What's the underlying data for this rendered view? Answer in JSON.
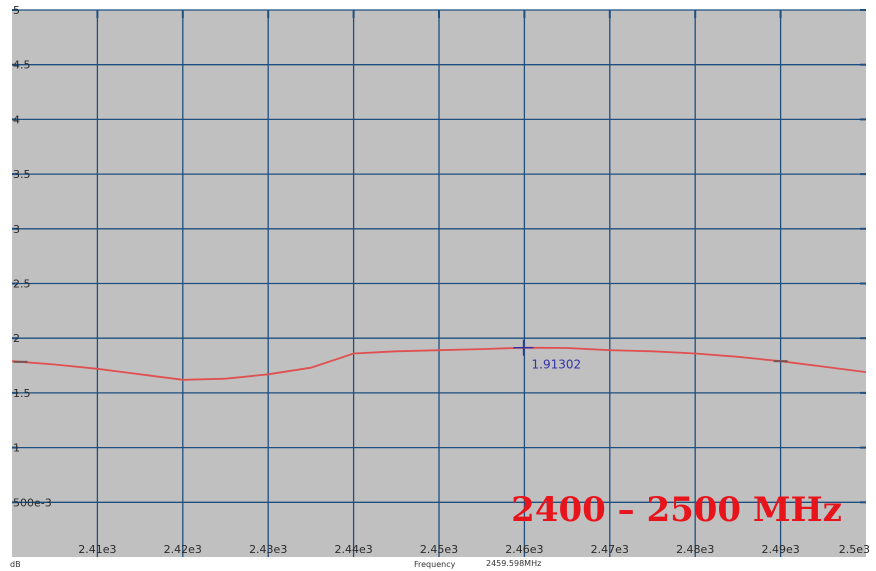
{
  "chart_data": {
    "type": "line",
    "x_unit_note": "frequency in MHz",
    "xlim": [
      2400,
      2500
    ],
    "ylim": [
      0,
      5
    ],
    "grid": true,
    "x_ticks": [
      {
        "value": 2410,
        "label": "2.41e3"
      },
      {
        "value": 2420,
        "label": "2.42e3"
      },
      {
        "value": 2430,
        "label": "2.43e3"
      },
      {
        "value": 2440,
        "label": "2.44e3"
      },
      {
        "value": 2450,
        "label": "2.45e3"
      },
      {
        "value": 2460,
        "label": "2.46e3"
      },
      {
        "value": 2470,
        "label": "2.47e3"
      },
      {
        "value": 2480,
        "label": "2.48e3"
      },
      {
        "value": 2490,
        "label": "2.49e3"
      },
      {
        "value": 2500,
        "label": "2.5e3"
      }
    ],
    "y_ticks": [
      {
        "value": 5,
        "label": "5"
      },
      {
        "value": 4.5,
        "label": "4.5"
      },
      {
        "value": 4,
        "label": "4"
      },
      {
        "value": 3.5,
        "label": "3.5"
      },
      {
        "value": 3,
        "label": "3"
      },
      {
        "value": 2.5,
        "label": "2.5"
      },
      {
        "value": 2,
        "label": "2"
      },
      {
        "value": 1.5,
        "label": "1.5"
      },
      {
        "value": 1,
        "label": "1"
      },
      {
        "value": 0.5,
        "label": "500e-3"
      }
    ],
    "series": [
      {
        "color": "#e05050",
        "x": [
          2400,
          2405,
          2410,
          2415,
          2420,
          2425,
          2430,
          2435,
          2440,
          2445,
          2450,
          2455,
          2460,
          2465,
          2470,
          2475,
          2480,
          2485,
          2490,
          2495,
          2500
        ],
        "y": [
          1.79,
          1.76,
          1.72,
          1.67,
          1.62,
          1.63,
          1.67,
          1.73,
          1.86,
          1.88,
          1.89,
          1.9,
          1.913,
          1.91,
          1.89,
          1.88,
          1.86,
          1.83,
          1.79,
          1.74,
          1.69
        ]
      }
    ],
    "marker": {
      "x": 2459.9,
      "y": 1.91302,
      "label": "1.91302"
    },
    "overlay_text": "2400 – 2500 MHz"
  },
  "footer": {
    "y_unit": "dB",
    "x_name": "Frequency",
    "x_readout": "2459.598MHz"
  },
  "colors": {
    "plot_background": "#c0c0c0",
    "grid": "#1e4f80",
    "trace": "#e05050",
    "marker": "#3333aa",
    "overlay": "#e8141c"
  }
}
